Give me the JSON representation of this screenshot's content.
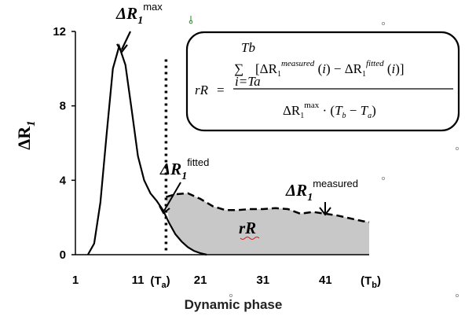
{
  "chart_data": {
    "type": "area",
    "x_range": [
      1,
      48
    ],
    "y_range": [
      0,
      12
    ],
    "xticks": [
      "1",
      "11",
      "21",
      "31",
      "41"
    ],
    "yticks": [
      "0",
      "4",
      "8",
      "12"
    ],
    "ylabel": "ΔR1",
    "xlabel": "Dynamic phase",
    "marker_labels": {
      "ta": "(Ta)",
      "tb": "(Tb)"
    },
    "ta": 15.5,
    "tb": 48,
    "series": [
      {
        "name": "measured",
        "style": "dashed",
        "x": [
          15.5,
          17,
          19,
          21,
          23,
          25,
          27,
          29,
          31,
          33,
          35,
          37,
          39,
          41,
          43,
          45,
          47,
          48
        ],
        "y": [
          3.1,
          3.25,
          3.3,
          3.0,
          2.6,
          2.4,
          2.4,
          2.45,
          2.45,
          2.5,
          2.45,
          2.2,
          2.3,
          2.2,
          2.1,
          1.95,
          1.8,
          1.75
        ]
      },
      {
        "name": "fitted",
        "style": "solid",
        "x": [
          3,
          4,
          5,
          6,
          7,
          8,
          9,
          10,
          11,
          12,
          13,
          14,
          15,
          16,
          17,
          18,
          19,
          20,
          21,
          22
        ],
        "y": [
          0,
          0.6,
          2.8,
          6.5,
          10.0,
          11.2,
          10.2,
          7.8,
          5.3,
          4.0,
          3.3,
          2.9,
          2.4,
          1.7,
          1.1,
          0.7,
          0.4,
          0.2,
          0.08,
          0
        ]
      }
    ],
    "annotations": {
      "max_label": {
        "base": "ΔR",
        "sub": "1",
        "sup": "max"
      },
      "fitted_label": {
        "base": "ΔR",
        "sub": "1",
        "sup": "fitted"
      },
      "measured_label": {
        "base": "ΔR",
        "sub": "1",
        "sup": "measured"
      },
      "area_label": "rR"
    },
    "formula": {
      "lhs": "rR",
      "sum_top": "Tb",
      "sum_bottom": "i=Ta",
      "numerator": "[ΔR1measured (i) − ΔR1fitted (i)]",
      "denominator": "ΔR1max · (Tb − Ta)"
    },
    "colors": {
      "fill": "#c8c8c8",
      "line": "#000000"
    }
  }
}
